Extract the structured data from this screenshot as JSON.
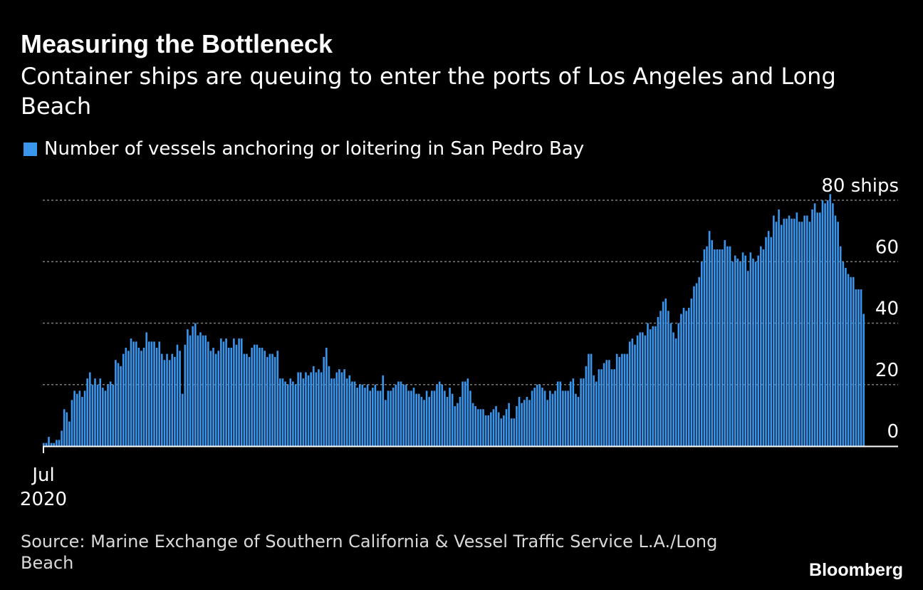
{
  "chart_data": {
    "type": "bar",
    "title": "Measuring the Bottleneck",
    "subtitle": "Container ships are queuing to enter the ports of Los Angeles and Long Beach",
    "series": [
      {
        "name": "Number of vessels anchoring or loitering in San Pedro Bay",
        "values": [
          1,
          1,
          3,
          1,
          1,
          2,
          2,
          5,
          12,
          11,
          8,
          15,
          18,
          17,
          18,
          16,
          18,
          22,
          24,
          20,
          22,
          20,
          22,
          19,
          18,
          20,
          21,
          20,
          28,
          27,
          26,
          30,
          32,
          31,
          35,
          34,
          34,
          32,
          31,
          32,
          37,
          34,
          34,
          34,
          32,
          34,
          30,
          28,
          30,
          28,
          30,
          29,
          33,
          31,
          17,
          33,
          38,
          36,
          39,
          40,
          36,
          37,
          36,
          36,
          34,
          31,
          32,
          30,
          31,
          35,
          34,
          35,
          32,
          32,
          35,
          33,
          35,
          35,
          30,
          30,
          29,
          32,
          33,
          33,
          32,
          32,
          31,
          29,
          30,
          30,
          29,
          31,
          22,
          22,
          21,
          20,
          22,
          21,
          20,
          24,
          24,
          22,
          24,
          23,
          24,
          26,
          24,
          25,
          24,
          29,
          32,
          26,
          22,
          22,
          24,
          25,
          24,
          25,
          22,
          23,
          21,
          21,
          19,
          20,
          20,
          19,
          20,
          18,
          19,
          20,
          18,
          18,
          23,
          15,
          18,
          18,
          19,
          20,
          21,
          21,
          20,
          20,
          18,
          18,
          19,
          17,
          17,
          16,
          15,
          18,
          16,
          18,
          18,
          20,
          21,
          20,
          18,
          16,
          19,
          17,
          13,
          14,
          16,
          21,
          21,
          22,
          18,
          14,
          13,
          12,
          12,
          12,
          10,
          10,
          11,
          12,
          13,
          11,
          9,
          10,
          12,
          14,
          9,
          9,
          13,
          16,
          14,
          15,
          16,
          15,
          18,
          19,
          20,
          20,
          19,
          18,
          15,
          18,
          17,
          18,
          21,
          21,
          18,
          18,
          18,
          21,
          22,
          17,
          16,
          22,
          22,
          26,
          30,
          30,
          23,
          21,
          25,
          25,
          27,
          28,
          28,
          25,
          25,
          30,
          29,
          30,
          30,
          30,
          34,
          35,
          33,
          36,
          37,
          37,
          36,
          40,
          38,
          39,
          39,
          42,
          44,
          47,
          48,
          44,
          40,
          37,
          35,
          40,
          43,
          45,
          44,
          45,
          48,
          52,
          53,
          55,
          60,
          64,
          65,
          70,
          67,
          64,
          64,
          64,
          64,
          67,
          65,
          65,
          60,
          62,
          61,
          60,
          63,
          62,
          57,
          63,
          61,
          60,
          62,
          65,
          64,
          68,
          70,
          68,
          75,
          73,
          77,
          72,
          74,
          74,
          75,
          74,
          74,
          76,
          73,
          73,
          75,
          75,
          73,
          77,
          79,
          76,
          76,
          80,
          79,
          80,
          82,
          79,
          75,
          73,
          65,
          60,
          58,
          56,
          55,
          55,
          51,
          51,
          51,
          43
        ]
      }
    ],
    "x_start_label": "Jul",
    "x_start_year": "2020",
    "y_ticks": [
      "0",
      "20",
      "40",
      "60",
      "80 ships"
    ],
    "y_tick_values": [
      0,
      20,
      40,
      60,
      80
    ],
    "ylim": [
      0,
      82
    ],
    "grid": true,
    "legend_position": "top-left",
    "bar_color": "#3a95ec",
    "grid_color": "#7a7a7a"
  },
  "source": "Source: Marine Exchange of Southern California & Vessel Traffic Service L.A./Long Beach",
  "brand": "Bloomberg"
}
